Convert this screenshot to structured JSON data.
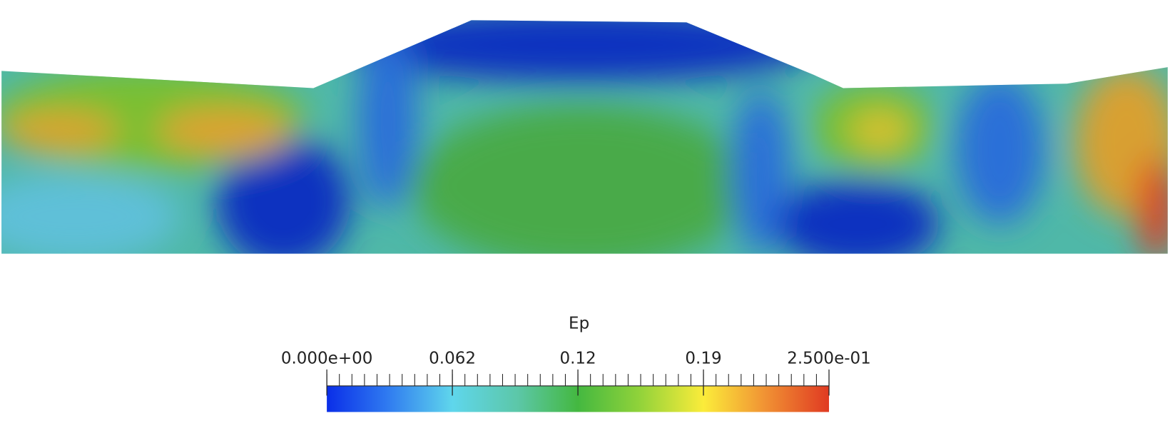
{
  "colorbar": {
    "title": "Ep",
    "range": [
      0,
      0.25
    ],
    "ticks": [
      {
        "value": 0,
        "label": "0.000e+00"
      },
      {
        "value": 0.0625,
        "label": "0.062"
      },
      {
        "value": 0.125,
        "label": "0.12"
      },
      {
        "value": 0.1875,
        "label": "0.19"
      },
      {
        "value": 0.25,
        "label": "2.500e-01"
      }
    ]
  }
}
